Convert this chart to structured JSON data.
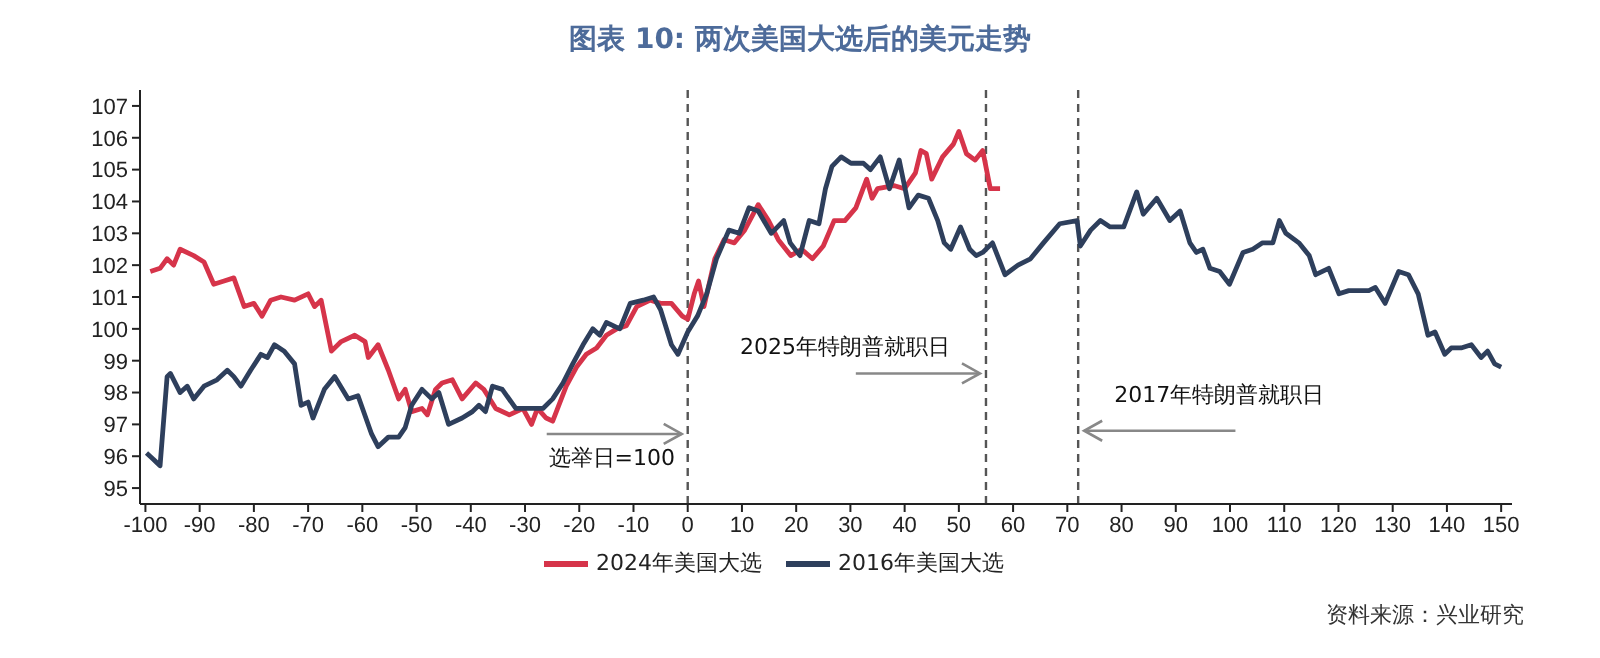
{
  "chart_data": {
    "type": "line",
    "title": "图表 10: 两次美国大选后的美元走势",
    "xlim": [
      -101,
      152
    ],
    "xticks": [
      -100,
      -90,
      -80,
      -70,
      -60,
      -50,
      -40,
      -30,
      -20,
      -10,
      0,
      10,
      20,
      30,
      40,
      50,
      60,
      70,
      80,
      90,
      100,
      110,
      120,
      130,
      140,
      150
    ],
    "ylim": [
      94.5,
      107.5
    ],
    "yticks": [
      95,
      96,
      97,
      98,
      99,
      100,
      101,
      102,
      103,
      104,
      105,
      106,
      107
    ],
    "legend": "bottom",
    "marker": "none",
    "line_style": "solid",
    "series": [
      {
        "name": "2024年美国大选",
        "color": "#d6344a",
        "x": [
          -99.1,
          -97.3,
          -96,
          -94.8,
          -93.6,
          -91.1,
          -89.2,
          -87.4,
          -85.5,
          -83.7,
          -81.8,
          -80,
          -78.5,
          -76.9,
          -75,
          -72.5,
          -70,
          -68.8,
          -67.6,
          -65.7,
          -63.9,
          -61.4,
          -59.5,
          -58.9,
          -57.1,
          -55.2,
          -53.3,
          -52.1,
          -50.9,
          -49,
          -48,
          -46.5,
          -45.3,
          -43.4,
          -41.6,
          -39.1,
          -37.6,
          -35.4,
          -32.9,
          -30.4,
          -28.8,
          -27.7,
          -26.1,
          -24.9,
          -22.4,
          -20.5,
          -18.7,
          -16.8,
          -15,
          -13.1,
          -11.3,
          -9.4,
          -6.9,
          -5,
          -3,
          -1,
          0,
          1.2,
          2,
          3,
          5,
          6.7,
          8.6,
          10.5,
          13,
          14.9,
          16.7,
          19,
          21,
          23,
          25,
          27,
          29,
          31,
          33,
          34,
          35,
          38,
          40,
          42,
          43,
          44,
          45,
          47,
          49,
          50,
          51.4,
          53,
          54.4,
          55.8,
          57.6
        ],
        "values": [
          101.8,
          101.9,
          102.2,
          102,
          102.5,
          102.3,
          102.1,
          101.4,
          101.5,
          101.6,
          100.7,
          100.8,
          100.4,
          100.9,
          101,
          100.9,
          101.1,
          100.7,
          100.9,
          99.3,
          99.6,
          99.8,
          99.6,
          99.1,
          99.5,
          98.7,
          97.8,
          98.1,
          97.4,
          97.5,
          97.3,
          98.1,
          98.3,
          98.4,
          97.8,
          98.3,
          98.1,
          97.5,
          97.3,
          97.5,
          97,
          97.5,
          97.2,
          97.1,
          98.2,
          98.8,
          99.2,
          99.4,
          99.8,
          100,
          100.1,
          100.7,
          100.9,
          100.8,
          100.8,
          100.4,
          100.3,
          101.1,
          101.5,
          100.7,
          102.2,
          102.8,
          102.7,
          103.1,
          103.9,
          103.4,
          102.8,
          102.3,
          102.5,
          102.2,
          102.6,
          103.4,
          103.4,
          103.8,
          104.7,
          104.1,
          104.4,
          104.5,
          104.4,
          104.9,
          105.6,
          105.5,
          104.7,
          105.4,
          105.8,
          106.2,
          105.5,
          105.3,
          105.6,
          104.4,
          104.4
        ]
      },
      {
        "name": "2016年美国大选",
        "color": "#2e3f5c",
        "x": [
          -99.8,
          -98.5,
          -97.3,
          -96,
          -95.4,
          -93.6,
          -92.3,
          -91.1,
          -89.2,
          -86.8,
          -84.9,
          -83.7,
          -82.4,
          -80.6,
          -78.7,
          -77.5,
          -76.2,
          -74.4,
          -72.5,
          -71.3,
          -70,
          -69.1,
          -67,
          -65.1,
          -62.6,
          -60.8,
          -58.3,
          -57.1,
          -55.2,
          -53.3,
          -52.1,
          -50.9,
          -49,
          -47.2,
          -45.9,
          -44.1,
          -41.6,
          -39.7,
          -38.5,
          -37.3,
          -36,
          -34.2,
          -31.7,
          -29.2,
          -26.7,
          -24.9,
          -23,
          -21.2,
          -19.3,
          -17.5,
          -16.2,
          -15,
          -12.5,
          -10.6,
          -8.2,
          -6.3,
          -5,
          -3,
          -1.8,
          0,
          1.8,
          3.5,
          5.3,
          7.6,
          9.5,
          11.3,
          13,
          15.4,
          17.7,
          18.9,
          20.7,
          22.4,
          24.2,
          25.4,
          26.6,
          28.3,
          30.1,
          32.4,
          33.7,
          35.5,
          37.2,
          39,
          40.8,
          42.5,
          44.4,
          46.1,
          47.3,
          48.5,
          50.3,
          52,
          53.2,
          54.4,
          56.2,
          58.5,
          60.9,
          63.2,
          65.6,
          68.6,
          71.8,
          72.4,
          74.3,
          76.1,
          77.9,
          80.4,
          82.8,
          84,
          86.5,
          88.9,
          90.8,
          92.6,
          93.8,
          95,
          96.3,
          98.1,
          99.9,
          102.4,
          104.2,
          106,
          107.9,
          109.1,
          110.3,
          112.7,
          114.6,
          115.8,
          118.2,
          120.1,
          121.9,
          125.6,
          126.8,
          128.6,
          131.1,
          132.9,
          134.7,
          136.5,
          137.8,
          139.6,
          140.8,
          142.6,
          144.5,
          146.3,
          147.5,
          148.8,
          150
        ],
        "values": [
          96.1,
          95.9,
          95.7,
          98.5,
          98.6,
          98,
          98.2,
          97.8,
          98.2,
          98.4,
          98.7,
          98.5,
          98.2,
          98.7,
          99.2,
          99.1,
          99.5,
          99.3,
          98.9,
          97.6,
          97.7,
          97.2,
          98.1,
          98.5,
          97.8,
          97.9,
          96.7,
          96.3,
          96.6,
          96.6,
          96.9,
          97.6,
          98.1,
          97.8,
          98,
          97,
          97.2,
          97.4,
          97.6,
          97.4,
          98.2,
          98.1,
          97.5,
          97.5,
          97.5,
          97.8,
          98.3,
          98.9,
          99.5,
          100,
          99.8,
          100.2,
          100,
          100.8,
          100.9,
          101,
          100.6,
          99.5,
          99.2,
          99.9,
          100.4,
          101.1,
          102.2,
          103.1,
          103,
          103.8,
          103.7,
          103,
          103.4,
          102.7,
          102.3,
          103.4,
          103.3,
          104.4,
          105.1,
          105.4,
          105.2,
          105.2,
          105,
          105.4,
          104.4,
          105.3,
          103.8,
          104.2,
          104.1,
          103.4,
          102.7,
          102.5,
          103.2,
          102.5,
          102.3,
          102.4,
          102.7,
          101.7,
          102,
          102.2,
          102.7,
          103.3,
          103.4,
          102.6,
          103.1,
          103.4,
          103.2,
          103.2,
          104.3,
          103.6,
          104.1,
          103.4,
          103.7,
          102.7,
          102.4,
          102.5,
          101.9,
          101.8,
          101.4,
          102.4,
          102.5,
          102.7,
          102.7,
          103.4,
          103,
          102.7,
          102.3,
          101.7,
          101.9,
          101.1,
          101.2,
          101.2,
          101.3,
          100.8,
          101.8,
          101.7,
          101.1,
          99.8,
          99.9,
          99.2,
          99.4,
          99.4,
          99.5,
          99.1,
          99.3,
          98.9,
          98.8
        ]
      }
    ],
    "ref_lines": [
      {
        "axis": "x",
        "value": 0,
        "color": "#555555",
        "line_style": "dashed"
      },
      {
        "axis": "x",
        "value": 55,
        "label": "2025年特朗普就职日",
        "color": "#555555",
        "line_style": "dashed"
      },
      {
        "axis": "x",
        "value": 72,
        "label": "2017年特朗普就职日",
        "color": "#555555",
        "line_style": "dashed"
      }
    ],
    "annotations": [
      "选举日=100",
      "资料来源：兴业研究"
    ]
  }
}
